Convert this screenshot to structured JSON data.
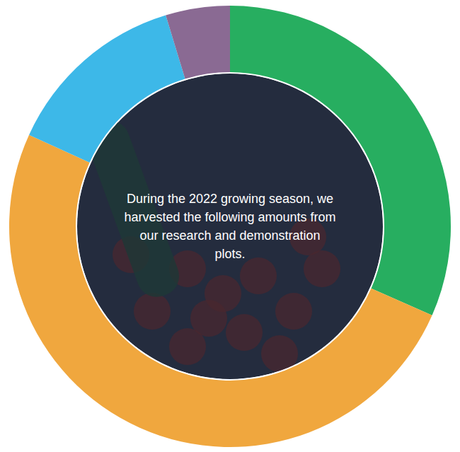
{
  "chart_data": {
    "type": "donut",
    "annotation": "During the 2022 growing season, we harvested the following amounts from our research and demonstration plots.",
    "values": [
      31.6,
      50.2,
      13.5,
      4.7
    ],
    "colors": [
      "#27ae60",
      "#f0a73e",
      "#3db8e8",
      "#8a6a93"
    ]
  }
}
